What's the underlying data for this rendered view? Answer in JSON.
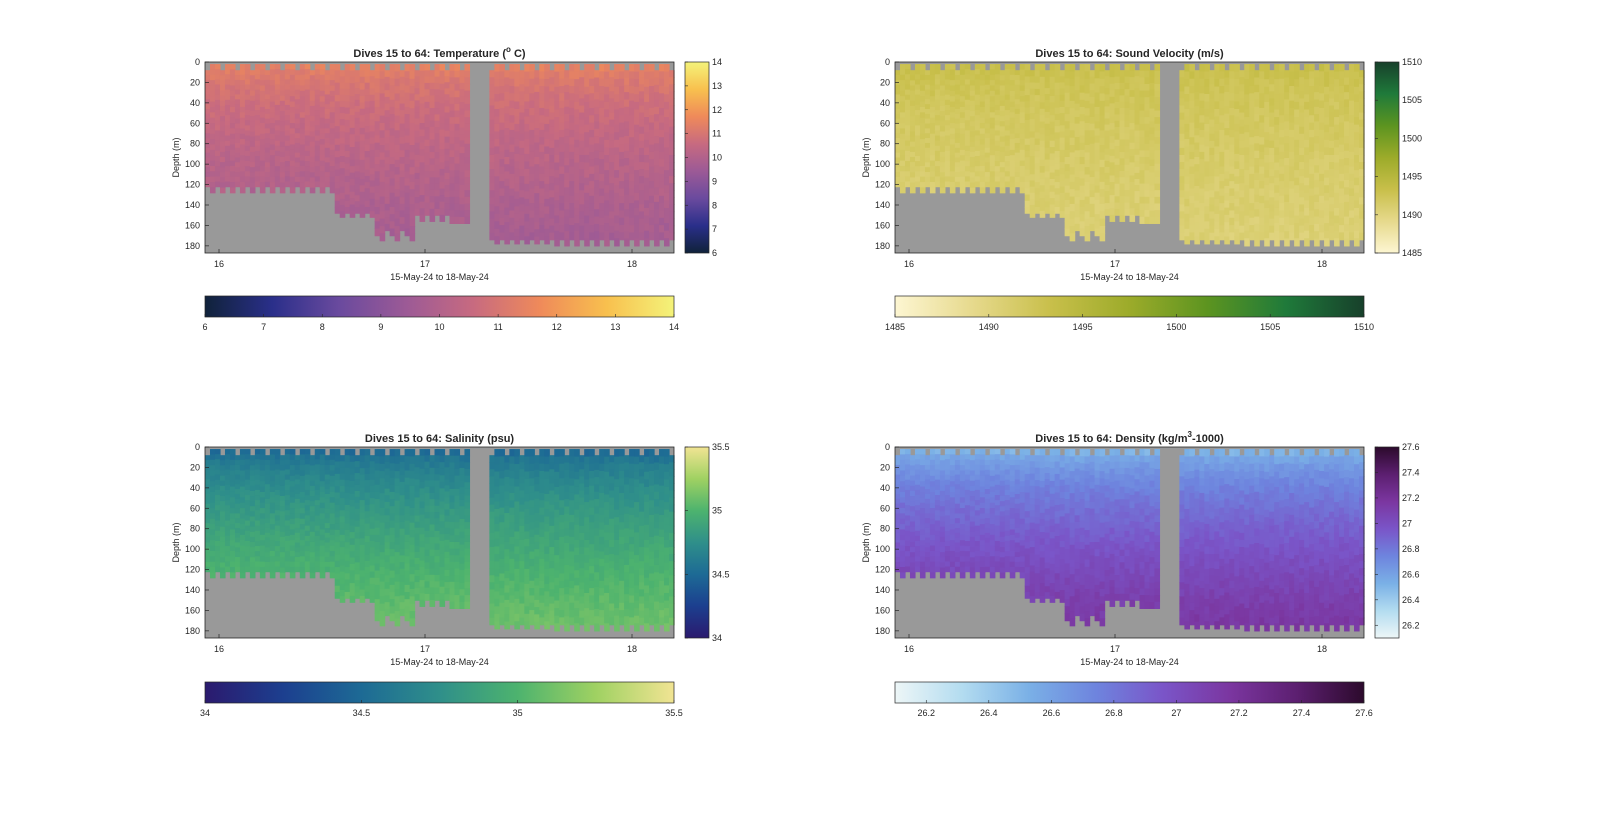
{
  "chart_data": [
    {
      "type": "heatmap",
      "title": "Dives 15 to 64: Temperature (",
      "title_sup": "o",
      "title_end": " C)",
      "xlabel": "15-May-24 to 18-May-24",
      "ylabel": "Depth (m)",
      "xticks": [
        "16",
        "17",
        "18"
      ],
      "yticks": [
        "0",
        "20",
        "40",
        "60",
        "80",
        "100",
        "120",
        "140",
        "160",
        "180"
      ],
      "ylim": [
        0,
        187
      ],
      "xlim": [
        15.93,
        18.2
      ],
      "colorbar_ticks": [
        "6",
        "7",
        "8",
        "9",
        "10",
        "11",
        "12",
        "13",
        "14"
      ],
      "colorbar_labels": [
        "6",
        "7",
        "8",
        "9",
        "10",
        "11",
        "12",
        "13",
        "14"
      ],
      "clim": [
        6,
        14
      ],
      "colormap": [
        "#10223a",
        "#2a2f8a",
        "#6a4a9e",
        "#9c5a96",
        "#c76a80",
        "#ef8a5a",
        "#f8c04e",
        "#f4f37a"
      ],
      "surface_value": 11.6,
      "deep_value": 9.6,
      "gap_color": "#999999"
    },
    {
      "type": "heatmap",
      "title": "Dives 15 to 64: Sound Velocity (m/s)",
      "title_sup": "",
      "title_end": "",
      "xlabel": "15-May-24 to 18-May-24",
      "ylabel": "Depth (m)",
      "xticks": [
        "16",
        "17",
        "18"
      ],
      "yticks": [
        "0",
        "20",
        "40",
        "60",
        "80",
        "100",
        "120",
        "140",
        "160",
        "180"
      ],
      "ylim": [
        0,
        187
      ],
      "xlim": [
        15.93,
        18.2
      ],
      "colorbar_ticks": [
        "1485",
        "1490",
        "1495",
        "1500",
        "1505",
        "1510"
      ],
      "colorbar_labels": [
        "1485",
        "1490",
        "1495",
        "1500",
        "1505",
        "1510"
      ],
      "clim": [
        1485,
        1510
      ],
      "colormap": [
        "#fdf6d2",
        "#e6d98c",
        "#c8bf4a",
        "#9cab2a",
        "#5c9420",
        "#1f7a3a",
        "#17402b"
      ],
      "surface_value": 1493.5,
      "deep_value": 1490.5,
      "gap_color": "#999999"
    },
    {
      "type": "heatmap",
      "title": "Dives 15 to 64: Salinity (psu)",
      "title_sup": "",
      "title_end": "",
      "xlabel": "15-May-24 to 18-May-24",
      "ylabel": "Depth (m)",
      "xticks": [
        "16",
        "17",
        "18"
      ],
      "yticks": [
        "0",
        "20",
        "40",
        "60",
        "80",
        "100",
        "120",
        "140",
        "160",
        "180"
      ],
      "ylim": [
        0,
        187
      ],
      "xlim": [
        15.93,
        18.2
      ],
      "colorbar_ticks": [
        "34",
        "34.5",
        "35",
        "35.5"
      ],
      "colorbar_labels": [
        "34",
        "34.5",
        "35",
        "35.5"
      ],
      "clim": [
        34,
        35.5
      ],
      "colormap": [
        "#2b1a6e",
        "#1c3f8f",
        "#1d6a95",
        "#2f8f8a",
        "#4db36e",
        "#9fd162",
        "#f1e493"
      ],
      "surface_value": 34.45,
      "deep_value": 35.12,
      "gap_color": "#999999"
    },
    {
      "type": "heatmap",
      "title": "Dives 15 to 64: Density (kg/m",
      "title_sup": "3",
      "title_end": "-1000)",
      "xlabel": "15-May-24 to 18-May-24",
      "ylabel": "Depth (m)",
      "xticks": [
        "16",
        "17",
        "18"
      ],
      "yticks": [
        "0",
        "20",
        "40",
        "60",
        "80",
        "100",
        "120",
        "140",
        "160",
        "180"
      ],
      "ylim": [
        0,
        187
      ],
      "xlim": [
        15.93,
        18.2
      ],
      "colorbar_ticks": [
        "26.2",
        "26.4",
        "26.6",
        "26.8",
        "27",
        "27.2",
        "27.4",
        "27.6"
      ],
      "colorbar_labels": [
        "26.2",
        "26.4",
        "26.6",
        "26.8",
        "27",
        "27.2",
        "27.4",
        "27.6"
      ],
      "clim": [
        26.1,
        27.6
      ],
      "colormap": [
        "#edf6f7",
        "#b3dcf0",
        "#7ab0e6",
        "#6e84de",
        "#7a55c8",
        "#7b36a0",
        "#5c1f70",
        "#2c0a2c"
      ],
      "surface_value": 26.45,
      "deep_value": 27.18,
      "gap_color": "#999999"
    }
  ]
}
